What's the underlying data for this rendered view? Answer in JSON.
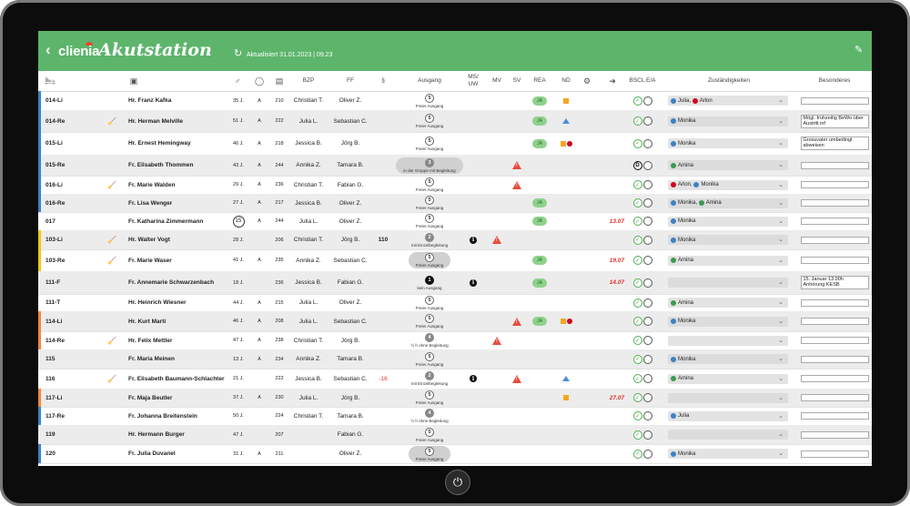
{
  "app": {
    "logo": "clienia",
    "title": "Akutstation",
    "updated": "Aktualisiert 31.01.2023 | 09.23",
    "accent": "#5cb56b"
  },
  "columns": [
    "BZP",
    "FF",
    "§",
    "Ausgang",
    "MS/ UW",
    "MV",
    "SV",
    "REA",
    "ND",
    "BSCL E/A",
    "Zuständigkeiten",
    "Besonderes"
  ],
  "colors": {
    "blue": "#3b82c4",
    "red": "#d0021b",
    "green": "#3a9b4f",
    "yellow": "#f5c518",
    "orange": "#f0883e",
    "warn": "#e74c3c"
  },
  "rows": [
    {
      "bed": "014-Li",
      "stripe": "blue",
      "broom": false,
      "name": "Hr. Franz Kafka",
      "age": "35 J.",
      "ins": "A",
      "room": "210",
      "bzp": "Christian T.",
      "ff": "Oliver Z.",
      "par": "",
      "ausg_n": "5",
      "ausg_t": "Freier Ausgang",
      "pill": false,
      "num": "w",
      "info": false,
      "mv": false,
      "sv": false,
      "rea": true,
      "nd": "sq",
      "exit": "",
      "bscl": "cc",
      "zust": [
        {
          "c": "blue",
          "n": "Julia"
        },
        {
          "c": "red",
          "n": "Arlon"
        }
      ],
      "bes": ""
    },
    {
      "bed": "014-Re",
      "stripe": "blue",
      "broom": true,
      "name": "Hr. Herman Melville",
      "age": "51 J.",
      "ins": "A",
      "room": "222",
      "bzp": "Julia L.",
      "ff": "Sebastian C.",
      "par": "",
      "ausg_n": "5",
      "ausg_t": "Freier Ausgang",
      "pill": false,
      "num": "w",
      "info": false,
      "mv": false,
      "sv": false,
      "rea": true,
      "nd": "tri",
      "exit": "",
      "bscl": "cc",
      "zust": [
        {
          "c": "blue",
          "n": "Monika"
        }
      ],
      "bes": "Mögl. frühzeitig BeWo über Austritt inf"
    },
    {
      "bed": "015-Li",
      "stripe": "blue",
      "broom": false,
      "name": "Hr. Ernest Hemingway",
      "age": "46 J.",
      "ins": "A",
      "room": "218",
      "bzp": "Jessica B.",
      "ff": "Jörg B.",
      "par": "",
      "ausg_n": "5",
      "ausg_t": "Freier Ausgang",
      "pill": false,
      "num": "w",
      "info": false,
      "mv": false,
      "sv": false,
      "rea": true,
      "nd": "sqdot",
      "exit": "",
      "bscl": "cc",
      "zust": [
        {
          "c": "blue",
          "n": "Monika"
        }
      ],
      "bes": "Grossvater umbedingt abweisen"
    },
    {
      "bed": "015-Re",
      "stripe": "blue",
      "broom": false,
      "name": "Fr. Elisabeth Thommen",
      "age": "43 J.",
      "ins": "A",
      "room": "244",
      "bzp": "Annika Z.",
      "ff": "Tamara B.",
      "par": "",
      "ausg_n": "3",
      "ausg_t": "in der Gruppe mit Begleitung",
      "pill": true,
      "num": "g",
      "info": false,
      "mv": false,
      "sv": true,
      "rea": false,
      "nd": "",
      "exit": "",
      "bscl": "dc",
      "zust": [
        {
          "c": "green",
          "n": "Amina"
        }
      ],
      "bes": ""
    },
    {
      "bed": "016-Li",
      "stripe": "blue",
      "broom": true,
      "name": "Fr. Marie Walden",
      "age": "29 J.",
      "ins": "A",
      "room": "236",
      "bzp": "Christian T.",
      "ff": "Fabian G.",
      "par": "",
      "ausg_n": "5",
      "ausg_t": "Freier Ausgang",
      "pill": false,
      "num": "w",
      "info": false,
      "mv": false,
      "sv": true,
      "rea": false,
      "nd": "",
      "exit": "",
      "bscl": "cc",
      "zust": [
        {
          "c": "red",
          "n": "Arlon"
        },
        {
          "c": "blue",
          "n": "Monika"
        }
      ],
      "bes": ""
    },
    {
      "bed": "016-Re",
      "stripe": "blue",
      "broom": false,
      "name": "Fr. Lisa Wenger",
      "age": "27 J.",
      "ins": "A",
      "room": "217",
      "bzp": "Jessica B.",
      "ff": "Oliver Z.",
      "par": "",
      "ausg_n": "5",
      "ausg_t": "Freier Ausgang",
      "pill": false,
      "num": "w",
      "info": false,
      "mv": false,
      "sv": false,
      "rea": true,
      "nd": "",
      "exit": "",
      "bscl": "cc",
      "zust": [
        {
          "c": "blue",
          "n": "Monika"
        },
        {
          "c": "green",
          "n": "Amina"
        }
      ],
      "bes": ""
    },
    {
      "bed": "017",
      "stripe": "none",
      "broom": false,
      "name": "Fr. Katharina Zimmermann",
      "age": "15",
      "ageCircle": true,
      "ins": "A",
      "room": "244",
      "bzp": "Julia L.",
      "ff": "Oliver Z.",
      "par": "",
      "ausg_n": "5",
      "ausg_t": "Freier Ausgang",
      "pill": false,
      "num": "w",
      "info": false,
      "mv": false,
      "sv": false,
      "rea": true,
      "nd": "",
      "exit": "13.07",
      "bscl": "cc",
      "zust": [
        {
          "c": "blue",
          "n": "Monika"
        }
      ],
      "bes": ""
    },
    {
      "bed": "103-Li",
      "stripe": "yellow",
      "broom": true,
      "name": "Hr. Walter Vogt",
      "age": "28 J.",
      "ins": "",
      "room": "206",
      "bzp": "Christian T.",
      "ff": "Jörg B.",
      "par": "110",
      "ausg_n": "2",
      "ausg_t": "mit Einzelbegleitung",
      "pill": false,
      "num": "g",
      "info": true,
      "mv": true,
      "sv": false,
      "rea": false,
      "nd": "",
      "exit": "",
      "bscl": "cc",
      "zust": [
        {
          "c": "blue",
          "n": "Monika"
        }
      ],
      "bes": ""
    },
    {
      "bed": "103-Re",
      "stripe": "yellow",
      "broom": true,
      "name": "Fr. Marie Waser",
      "age": "41 J.",
      "ins": "A",
      "room": "235",
      "bzp": "Annika Z.",
      "ff": "Sebastian C.",
      "par": "",
      "ausg_n": "5",
      "ausg_t": "Freier Ausgang",
      "pill": true,
      "num": "w",
      "info": false,
      "mv": false,
      "sv": false,
      "rea": true,
      "nd": "",
      "exit": "19.07",
      "bscl": "cc",
      "zust": [
        {
          "c": "green",
          "n": "Amina"
        }
      ],
      "bes": ""
    },
    {
      "bed": "111-F",
      "stripe": "none",
      "broom": false,
      "name": "Fr. Annemarie Schwarzenbach",
      "age": "18 J.",
      "ins": "",
      "room": "236",
      "bzp": "Jessica B.",
      "ff": "Fabian G.",
      "par": "",
      "ausg_n": "1",
      "ausg_t": "kein Ausgang",
      "pill": false,
      "num": "b",
      "info": true,
      "mv": false,
      "sv": false,
      "rea": true,
      "nd": "",
      "exit": "14.07",
      "bscl": "cc",
      "zust": [],
      "bes": "15. Januar 13.00h Anhörung KESB"
    },
    {
      "bed": "111-T",
      "stripe": "none",
      "broom": false,
      "name": "Hr. Heinrich Wiesner",
      "age": "44 J.",
      "ins": "A",
      "room": "215",
      "bzp": "Julia L.",
      "ff": "Oliver Z.",
      "par": "",
      "ausg_n": "5",
      "ausg_t": "Freier Ausgang",
      "pill": false,
      "num": "w",
      "info": false,
      "mv": false,
      "sv": false,
      "rea": false,
      "nd": "",
      "exit": "",
      "bscl": "cc",
      "zust": [
        {
          "c": "green",
          "n": "Amina"
        }
      ],
      "bes": ""
    },
    {
      "bed": "114-Li",
      "stripe": "orange",
      "broom": false,
      "name": "Hr. Kurt Marti",
      "age": "46 J.",
      "ins": "A",
      "room": "208",
      "bzp": "Julia L.",
      "ff": "Sebastian C.",
      "par": "",
      "ausg_n": "5",
      "ausg_t": "Freier Ausgang",
      "pill": false,
      "num": "w",
      "info": false,
      "mv": false,
      "sv": true,
      "rea": true,
      "nd": "sqdot",
      "exit": "",
      "bscl": "cc",
      "zust": [
        {
          "c": "blue",
          "n": "Monika"
        }
      ],
      "bes": ""
    },
    {
      "bed": "114-Re",
      "stripe": "orange",
      "broom": true,
      "name": "Hr. Felix Mettler",
      "age": "47 J.",
      "ins": "A",
      "room": "238",
      "bzp": "Christian T.",
      "ff": "Jörg B.",
      "par": "",
      "ausg_n": "4",
      "ausg_t": "½ h ohne Begleitung",
      "pill": false,
      "num": "g",
      "info": false,
      "mv": true,
      "sv": false,
      "rea": false,
      "nd": "",
      "exit": "",
      "bscl": "cc",
      "zust": [],
      "bes": ""
    },
    {
      "bed": "115",
      "stripe": "none",
      "broom": false,
      "name": "Fr. Maria Meinen",
      "age": "13 J.",
      "ins": "A",
      "room": "234",
      "bzp": "Annika Z.",
      "ff": "Tamara B.",
      "par": "",
      "ausg_n": "5",
      "ausg_t": "Freier Ausgang",
      "pill": false,
      "num": "w",
      "info": false,
      "mv": false,
      "sv": false,
      "rea": false,
      "nd": "",
      "exit": "",
      "bscl": "cc",
      "zust": [
        {
          "c": "blue",
          "n": "Monika"
        }
      ],
      "bes": ""
    },
    {
      "bed": "116",
      "stripe": "none",
      "broom": true,
      "name": "Fr. Elisabeth Baumann-Schlachter",
      "age": "21 J.",
      "ins": "",
      "room": "222",
      "bzp": "Jessica B.",
      "ff": "Sebastian C.",
      "par": "-16",
      "parRed": true,
      "ausg_n": "2",
      "ausg_t": "mit Einzelbegleitung",
      "pill": false,
      "num": "g",
      "info": true,
      "mv": false,
      "sv": true,
      "rea": false,
      "nd": "tri",
      "exit": "",
      "bscl": "cc",
      "zust": [
        {
          "c": "green",
          "n": "Amina"
        }
      ],
      "bes": ""
    },
    {
      "bed": "117-Li",
      "stripe": "orange",
      "broom": false,
      "name": "Fr. Maja Beutler",
      "age": "37 J.",
      "ins": "A",
      "room": "230",
      "bzp": "Julia L.",
      "ff": "Jörg B.",
      "par": "",
      "ausg_n": "5",
      "ausg_t": "Freier Ausgang",
      "pill": false,
      "num": "w",
      "info": false,
      "mv": false,
      "sv": false,
      "rea": false,
      "nd": "sq",
      "exit": "27.07",
      "bscl": "cc",
      "zust": [],
      "bes": ""
    },
    {
      "bed": "117-Re",
      "stripe": "blue",
      "broom": false,
      "name": "Fr. Johanna Breitenstein",
      "age": "50 J.",
      "ins": "",
      "room": "224",
      "bzp": "Christian T.",
      "ff": "Tamara B.",
      "par": "",
      "ausg_n": "4",
      "ausg_t": "½ h ohne Begleitung",
      "pill": false,
      "num": "g",
      "info": false,
      "mv": false,
      "sv": false,
      "rea": false,
      "nd": "",
      "exit": "",
      "bscl": "cc",
      "zust": [
        {
          "c": "blue",
          "n": "Julia"
        }
      ],
      "bes": ""
    },
    {
      "bed": "119",
      "stripe": "none",
      "broom": false,
      "name": "Hr. Hermann Burger",
      "age": "47 J.",
      "ins": "",
      "room": "207",
      "bzp": "",
      "ff": "Fabian G.",
      "par": "",
      "ausg_n": "5",
      "ausg_t": "Freier Ausgang",
      "pill": false,
      "num": "w",
      "info": false,
      "mv": false,
      "sv": false,
      "rea": false,
      "nd": "",
      "exit": "",
      "bscl": "cc",
      "zust": [],
      "bes": ""
    },
    {
      "bed": "120",
      "stripe": "blue",
      "broom": false,
      "name": "Fr. Julia Duvanel",
      "age": "31 J.",
      "ins": "A",
      "room": "211",
      "bzp": "",
      "ff": "Oliver Z.",
      "par": "",
      "ausg_n": "5",
      "ausg_t": "Freier Ausgang",
      "pill": true,
      "num": "w",
      "info": false,
      "mv": false,
      "sv": false,
      "rea": false,
      "nd": "",
      "exit": "",
      "bscl": "cc",
      "zust": [
        {
          "c": "blue",
          "n": "Monika"
        }
      ],
      "bes": ""
    }
  ],
  "labels": {
    "rea": "JA"
  }
}
